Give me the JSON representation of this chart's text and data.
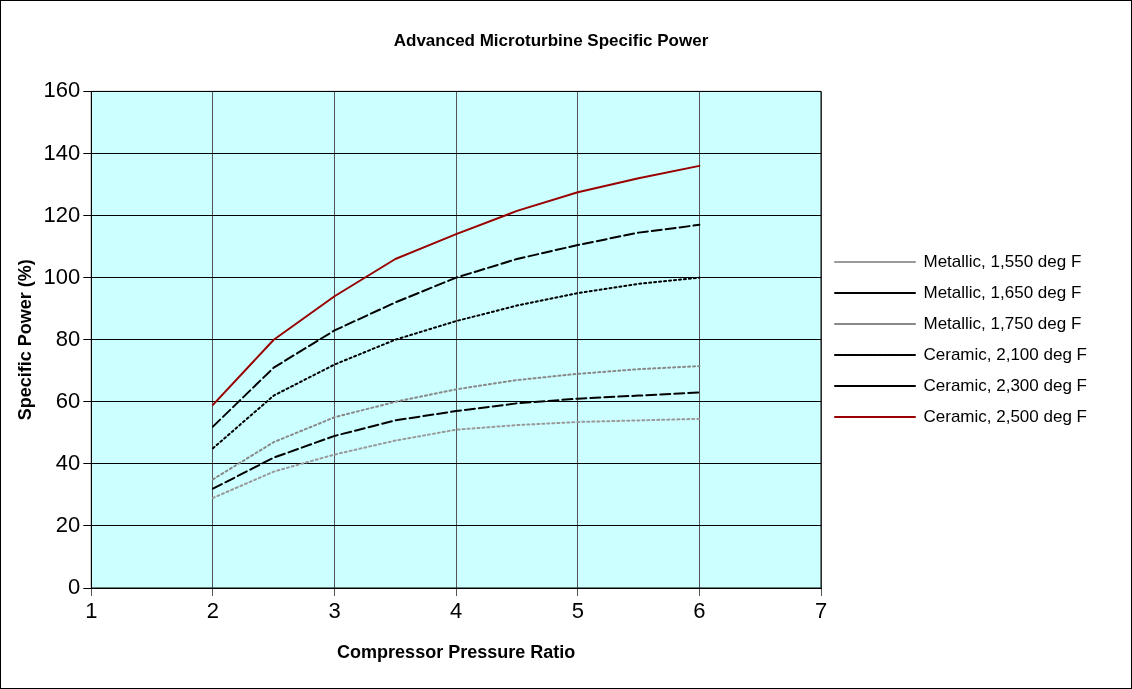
{
  "chart_data": {
    "type": "line",
    "title": "Advanced Microturbine Specific Power",
    "xlabel": "Compressor Pressure Ratio",
    "ylabel": "Specific Power (%)",
    "x": [
      2,
      2.5,
      3,
      3.5,
      4,
      4.5,
      5,
      5.5,
      6
    ],
    "series": [
      {
        "name": "Metallic, 1,550 deg F",
        "color": "#999999",
        "line_style": "dotted",
        "values": [
          29,
          37.5,
          43,
          47.5,
          51,
          52.5,
          53.5,
          54,
          54.5
        ]
      },
      {
        "name": "Metallic, 1,650 deg F",
        "color": "#000000",
        "line_style": "dashed",
        "values": [
          32,
          42,
          49,
          54,
          57,
          59.5,
          61,
          62,
          63
        ]
      },
      {
        "name": "Metallic, 1,750 deg F",
        "color": "#888888",
        "line_style": "dotted",
        "values": [
          35,
          47,
          55,
          60,
          64,
          67,
          69,
          70.5,
          71.5
        ]
      },
      {
        "name": "Ceramic, 2,100 deg F",
        "color": "#000000",
        "line_style": "dotted",
        "values": [
          45,
          62,
          72,
          80,
          86,
          91,
          95,
          98,
          100
        ]
      },
      {
        "name": "Ceramic, 2,300 deg F",
        "color": "#000000",
        "line_style": "dashed",
        "values": [
          52,
          71,
          83,
          92,
          100,
          106,
          110.5,
          114.5,
          117
        ]
      },
      {
        "name": "Ceramic, 2,500 deg F",
        "color": "#990000",
        "line_style": "solid",
        "values": [
          59,
          80,
          94,
          106,
          114,
          121.5,
          127.5,
          132,
          136
        ]
      }
    ],
    "xlim": [
      1,
      7
    ],
    "xticks": [
      1,
      2,
      3,
      4,
      5,
      6,
      7
    ],
    "ylim": [
      0,
      160
    ],
    "yticks": [
      0,
      20,
      40,
      60,
      80,
      100,
      120,
      140,
      160
    ],
    "grid": true,
    "legend": "right",
    "marker": "none"
  }
}
